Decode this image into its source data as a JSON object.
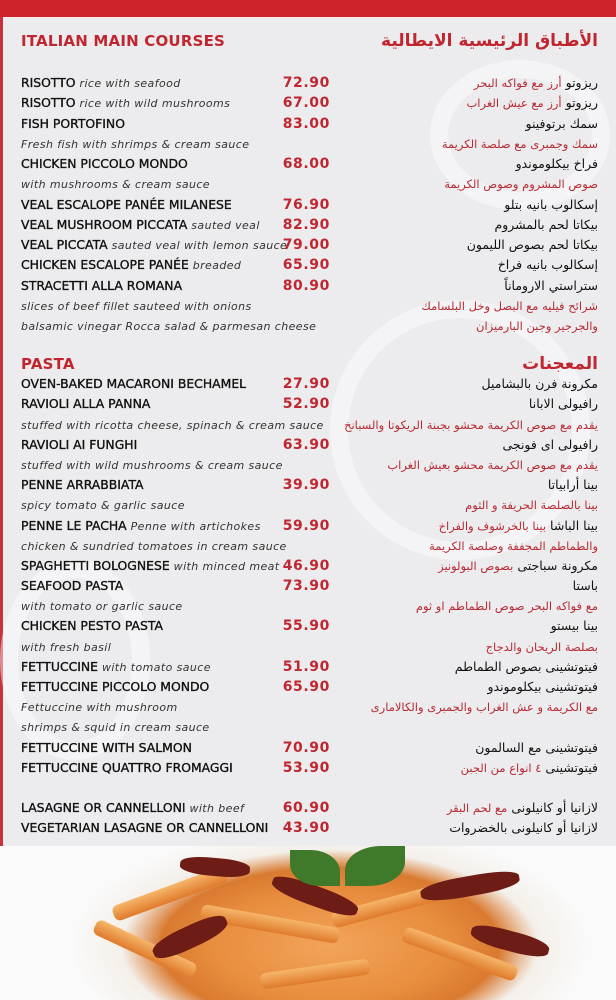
{
  "main": {
    "title_en": "ITALIAN MAIN COURSES",
    "title_ar": "الأطباق الرئيسية الايطالية",
    "rows": [
      {
        "en": "RISOTTO",
        "en_em": "rice with seafood",
        "price": "72.90",
        "ar": "ريزوتو",
        "ar_em": "أرز مع فواكه البحر"
      },
      {
        "en": "RISOTTO",
        "en_em": "rice with wild mushrooms",
        "price": "67.00",
        "ar": "ريزوتو",
        "ar_em": "أرز مع عيش الغراب"
      },
      {
        "en": "FISH PORTOFINO",
        "price": "83.00",
        "ar": "سمك برتوفينو"
      },
      {
        "en_em": "Fresh fish with shrimps & cream sauce",
        "ar_em": "سمك وجمبرى مع صلصة الكريمة"
      },
      {
        "en": "CHICKEN PICCOLO MONDO",
        "price": "68.00",
        "ar": "فراخ بيكلوموندو"
      },
      {
        "en_em": "with mushrooms & cream sauce",
        "ar_em": "صوص المشروم وصوص الكريمة"
      },
      {
        "en": "VEAL ESCALOPE PANÉE MILANESE",
        "price": "76.90",
        "ar": "إسكالوب بانيه بتلو"
      },
      {
        "en": "VEAL MUSHROOM PICCATA",
        "en_em": "sauted veal",
        "price": "82.90",
        "ar": "بيكاتا لحم بالمشروم"
      },
      {
        "en": "VEAL PICCATA",
        "en_em": "sauted veal with lemon sauce",
        "price": "79.00",
        "ar": "بيكاتا لحم بصوص الليمون"
      },
      {
        "en": "CHICKEN ESCALOPE PANÉE",
        "en_em": "breaded",
        "price": "65.90",
        "ar": "إسكالوب بانيه فراخ"
      },
      {
        "en": "STRACETTI ALLA ROMANA",
        "price": "80.90",
        "ar": "ستراستي الاروماناً"
      },
      {
        "en_em": "slices of beef fillet sauteed with onions",
        "ar_em": "شرائح فيليه مع البصل وخل البلسامك"
      },
      {
        "en_em": "balsamic vinegar Rocca salad & parmesan cheese",
        "ar_em": "والجرجير وجبن البارميزان"
      }
    ]
  },
  "pasta": {
    "title_en": "PASTA",
    "title_ar": "المعجنات",
    "rows": [
      {
        "en": "OVEN-BAKED MACARONI BECHAMEL",
        "price": "27.90",
        "ar": "مكرونة فرن بالبشاميل"
      },
      {
        "en": "RAVIOLI ALLA PANNA",
        "price": "52.90",
        "ar": "رافيولى الابانا"
      },
      {
        "en_em": "stuffed with ricotta cheese, spinach & cream sauce",
        "ar_em": "يقدم مع صوص الكريمة محشو بجبنة الريكوتا والسبانخ"
      },
      {
        "en": "RAVIOLI AI FUNGHI",
        "price": "63.90",
        "ar": "رافيولى اى فونجى"
      },
      {
        "en_em": "stuffed with wild mushrooms & cream sauce",
        "ar_em": "يقدم مع صوص الكريمة محشو بعيش الغراب"
      },
      {
        "en": "PENNE ARRABBIATA",
        "price": "39.90",
        "ar": "بينا أرابياتا"
      },
      {
        "en_em": "spicy tomato & garlic sauce",
        "ar_em": "بينا بالصلصة الحريفة و الثوم"
      },
      {
        "en": "PENNE LE PACHA",
        "en_em": "Penne with artichokes",
        "price": "59.90",
        "ar": "بينا الباشا",
        "ar_em": "بينا بالخرشوف والفراخ"
      },
      {
        "en_em": "chicken & sundried tomatoes in cream sauce",
        "ar_em": "والطماطم المجففة وصلصة الكريمة"
      },
      {
        "en": "SPAGHETTI BOLOGNESE",
        "en_em": "with minced meat",
        "price": "46.90",
        "ar": "مكرونة سباجتى",
        "ar_em": "بصوص البولونيز"
      },
      {
        "en": "SEAFOOD PASTA",
        "price": "73.90",
        "ar": "باستا"
      },
      {
        "en_em": "with tomato or garlic sauce",
        "ar_em": "مع فواكه البحر  صوص الطماطم او ثوم"
      },
      {
        "en": "CHICKEN PESTO PASTA",
        "price": "55.90",
        "ar": "بينا بيستو"
      },
      {
        "en_em": "with fresh basil",
        "ar_em": "بصلصة الريحان والدجاج"
      },
      {
        "en": "FETTUCCINE",
        "en_em": "with tomato sauce",
        "price": "51.90",
        "ar": "فيتوتشينى بصوص الطماطم"
      },
      {
        "en": "FETTUCCINE PICCOLO MONDO",
        "price": "65.90",
        "ar": "فيتوتشينى بيكلوموندو"
      },
      {
        "en_em": "Fettuccine with mushroom",
        "ar_em": "مع الكريمة و عش الغراب والجمبرى والكالامارى"
      },
      {
        "en_em": "shrimps & squid in cream sauce"
      },
      {
        "en": "FETTUCCINE WITH SALMON",
        "price": "70.90",
        "ar": "فيتوتشينى مع السالمون"
      },
      {
        "en": "FETTUCCINE QUATTRO FROMAGGI",
        "price": "53.90",
        "ar": "فيتوتشينى",
        "ar_em": "٤ انواع من الجبن"
      },
      {},
      {
        "en": "LASAGNE OR CANNELLONI",
        "en_em": "with beef",
        "price": "60.90",
        "ar": "لازانيا  أو كانيلونى",
        "ar_em": "مع لحم البقر"
      },
      {
        "en": "VEGETARIAN LASAGNE OR CANNELLONI",
        "price": "43.90",
        "ar": "لازانيا أو كانيلونى بالخضروات"
      }
    ]
  },
  "colors": {
    "accent": "#c0262f",
    "top_bar": "#d0222b",
    "background": "#ececee"
  }
}
